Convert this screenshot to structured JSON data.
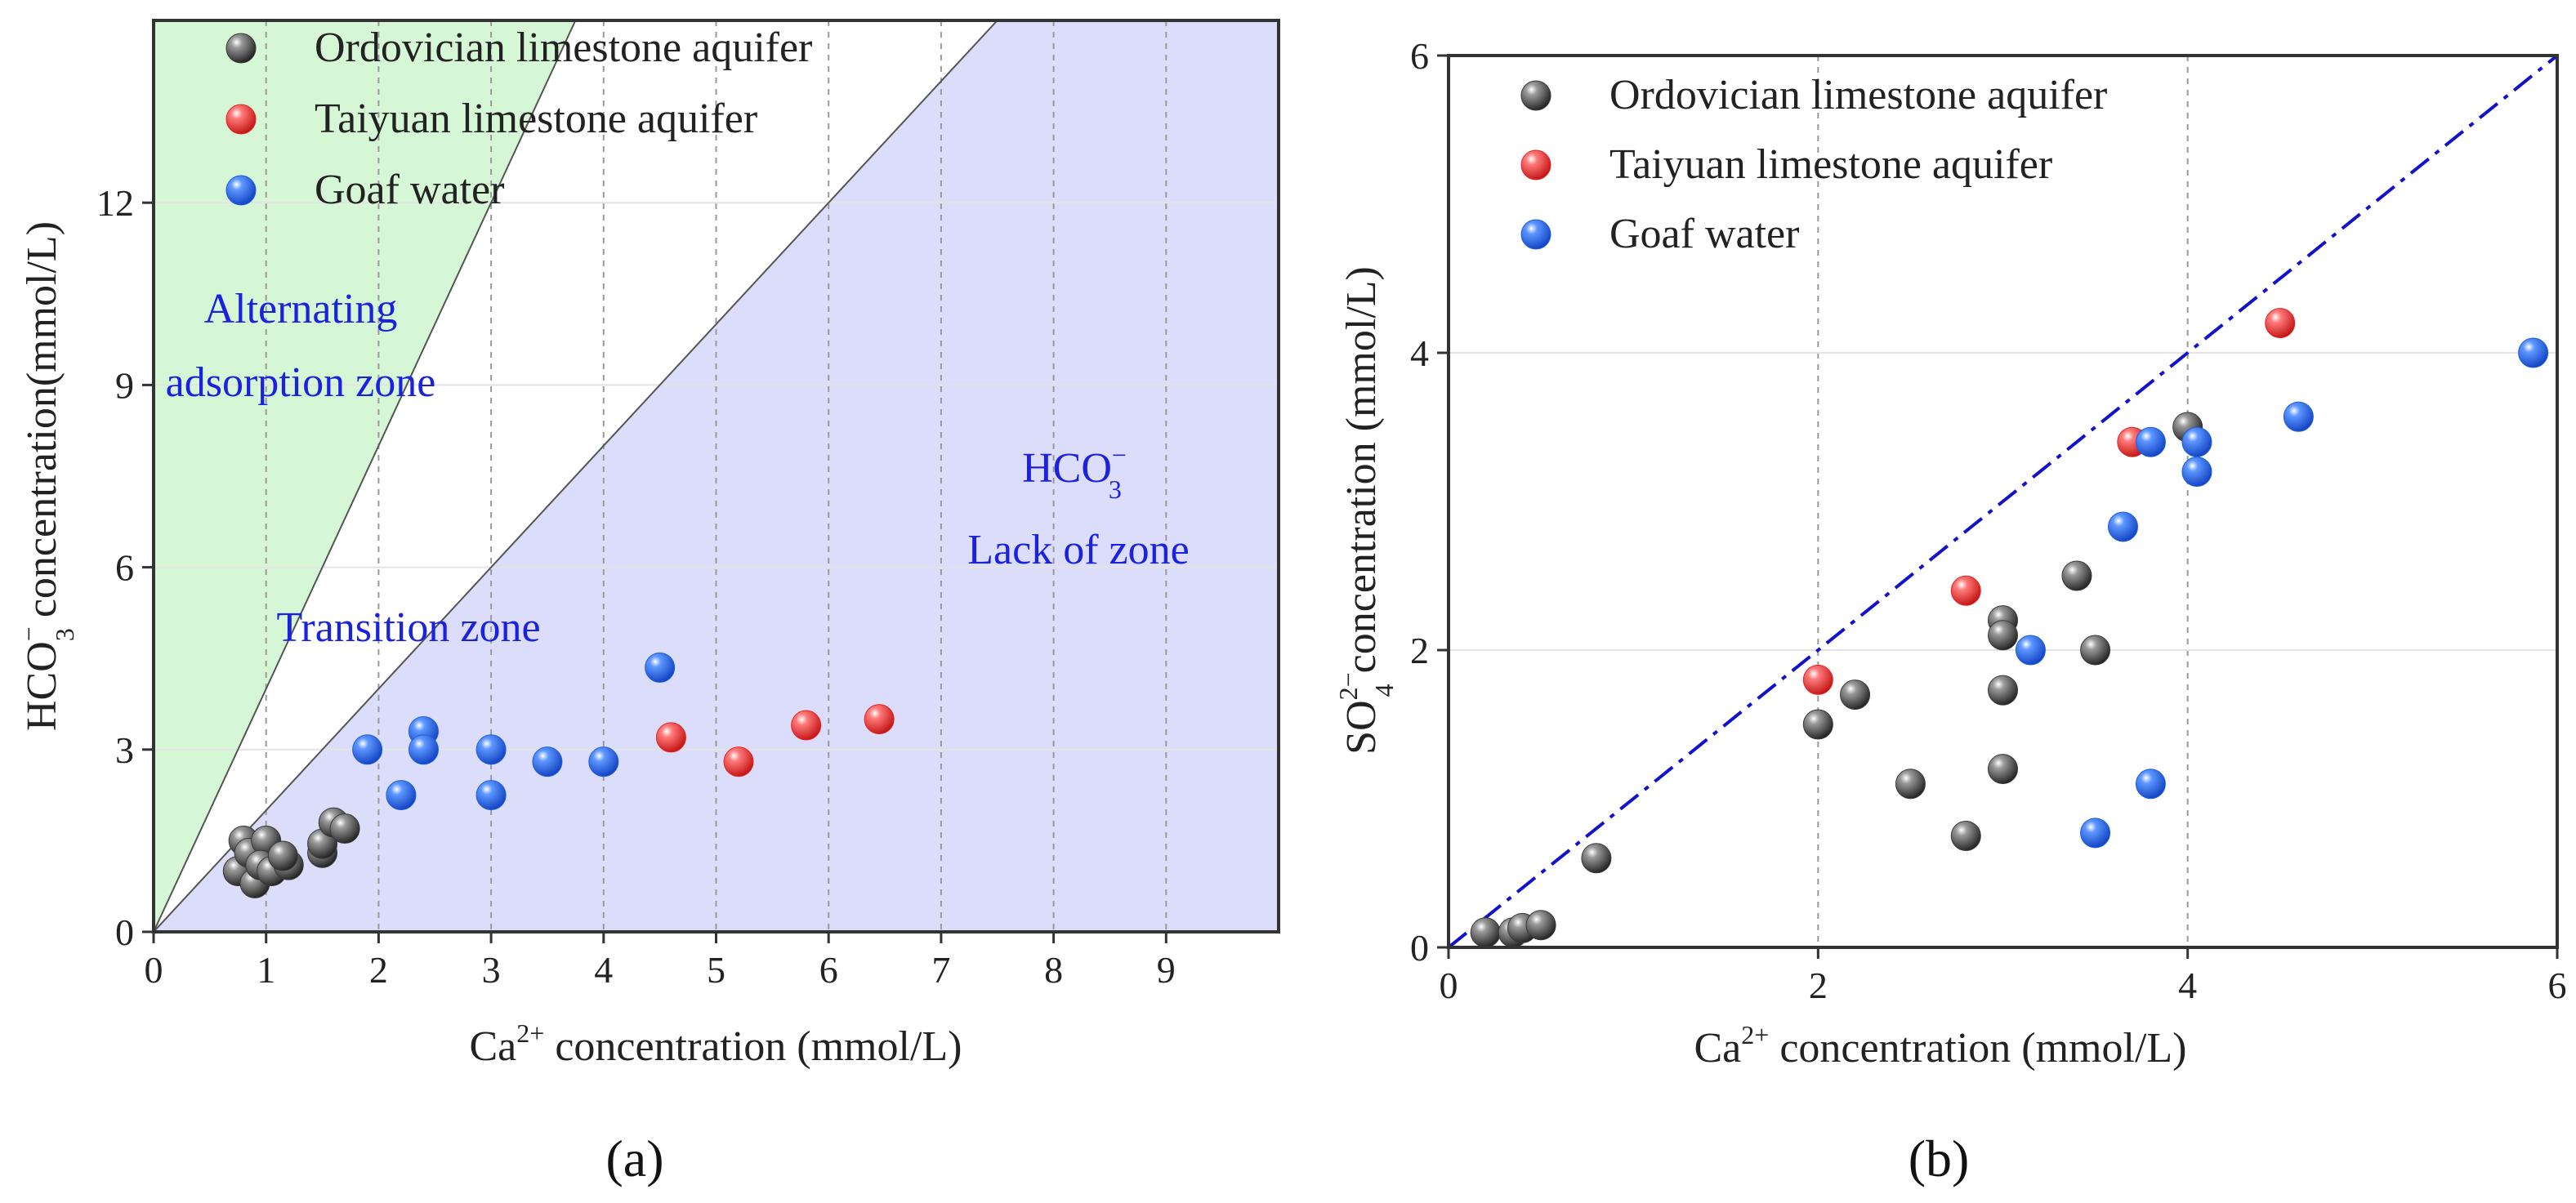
{
  "colors": {
    "ordovician": "#3a3a3a",
    "taiyuan": "#e62525",
    "goaf": "#1f5fe0",
    "green_zone": "#d6f7d6",
    "lavender_zone": "#dcdcfb",
    "zone_text": "#1a22e0",
    "diagonal": "#1212cc"
  },
  "chart_data": [
    {
      "id": "a",
      "type": "scatter",
      "caption": "(a)",
      "xlabel_prefix": "Ca",
      "xlabel_sup": "2+",
      "xlabel_suffix": " concentration (mmol/L)",
      "ylabel_prefix": "HCO",
      "ylabel_sub": "3",
      "ylabel_sup": "−",
      "ylabel_suffix": " concentration(mmol/L)",
      "xlim": [
        0,
        10
      ],
      "ylim": [
        0,
        15
      ],
      "xticks": [
        "0",
        "1",
        "2",
        "3",
        "4",
        "5",
        "6",
        "7",
        "8",
        "9"
      ],
      "xtick_values": [
        0,
        1,
        2,
        3,
        4,
        5,
        6,
        7,
        8,
        9
      ],
      "yticks": [
        "0",
        "3",
        "6",
        "9",
        "12"
      ],
      "ytick_values": [
        0,
        3,
        6,
        9,
        12
      ],
      "boundary_lines": [
        {
          "name": "upper-boundary",
          "slope": 4
        },
        {
          "name": "lower-boundary",
          "slope": 2
        }
      ],
      "zones": {
        "alternating_line1": "Alternating",
        "alternating_line2": "adsorption zone",
        "transition": "Transition zone",
        "lack_top_prefix": "HCO",
        "lack_top_sub": "3",
        "lack_top_sup": "−",
        "lack_bottom": "Lack of zone"
      },
      "legend": [
        {
          "label": "Ordovician limestone aquifer",
          "color_key": "ordovician"
        },
        {
          "label": "Taiyuan limestone aquifer",
          "color_key": "taiyuan"
        },
        {
          "label": "Goaf water",
          "color_key": "goaf"
        }
      ],
      "series": [
        {
          "name": "Ordovician limestone aquifer",
          "color_key": "ordovician",
          "points": [
            [
              0.8,
              1.5
            ],
            [
              0.75,
              1.0
            ],
            [
              0.85,
              1.3
            ],
            [
              0.9,
              0.8
            ],
            [
              1.0,
              1.5
            ],
            [
              0.95,
              1.1
            ],
            [
              1.05,
              1.0
            ],
            [
              1.2,
              1.1
            ],
            [
              1.15,
              1.25
            ],
            [
              1.5,
              1.3
            ],
            [
              1.5,
              1.45
            ],
            [
              1.6,
              1.8
            ],
            [
              1.7,
              1.7
            ]
          ]
        },
        {
          "name": "Taiyuan limestone aquifer",
          "color_key": "taiyuan",
          "points": [
            [
              4.6,
              3.2
            ],
            [
              5.2,
              2.8
            ],
            [
              5.8,
              3.4
            ],
            [
              6.45,
              3.5
            ]
          ]
        },
        {
          "name": "Goaf water",
          "color_key": "goaf",
          "points": [
            [
              1.9,
              3.0
            ],
            [
              2.2,
              2.25
            ],
            [
              2.4,
              3.3
            ],
            [
              2.4,
              3.0
            ],
            [
              3.0,
              3.0
            ],
            [
              3.0,
              2.25
            ],
            [
              3.5,
              2.8
            ],
            [
              4.0,
              2.8
            ],
            [
              4.5,
              4.35
            ]
          ]
        }
      ]
    },
    {
      "id": "b",
      "type": "scatter",
      "caption": "(b)",
      "xlabel_prefix": "Ca",
      "xlabel_sup": "2+",
      "xlabel_suffix": " concentration (mmol/L)",
      "ylabel_prefix": "SO",
      "ylabel_sub": "4",
      "ylabel_sup": "2−",
      "ylabel_suffix": " concentration (mmol/L)",
      "xlim": [
        0,
        6
      ],
      "ylim": [
        0,
        6
      ],
      "xticks": [
        "0",
        "2",
        "4",
        "6"
      ],
      "xtick_values": [
        0,
        2,
        4,
        6
      ],
      "yticks": [
        "0",
        "2",
        "4",
        "6"
      ],
      "ytick_values": [
        0,
        2,
        4,
        6
      ],
      "reference_line": "y = x",
      "legend": [
        {
          "label": "Ordovician limestone aquifer",
          "color_key": "ordovician"
        },
        {
          "label": "Taiyuan limestone aquifer",
          "color_key": "taiyuan"
        },
        {
          "label": "Goaf water",
          "color_key": "goaf"
        }
      ],
      "series": [
        {
          "name": "Ordovician limestone aquifer",
          "color_key": "ordovician",
          "points": [
            [
              0.2,
              0.1
            ],
            [
              0.35,
              0.1
            ],
            [
              0.4,
              0.13
            ],
            [
              0.5,
              0.15
            ],
            [
              0.8,
              0.6
            ],
            [
              2.0,
              1.5
            ],
            [
              2.2,
              1.7
            ],
            [
              2.5,
              1.1
            ],
            [
              2.8,
              0.75
            ],
            [
              3.0,
              2.2
            ],
            [
              3.0,
              2.1
            ],
            [
              3.0,
              1.73
            ],
            [
              3.0,
              1.2
            ],
            [
              3.4,
              2.5
            ],
            [
              3.5,
              2.0
            ],
            [
              4.0,
              3.5
            ]
          ]
        },
        {
          "name": "Taiyuan limestone aquifer",
          "color_key": "taiyuan",
          "points": [
            [
              2.0,
              1.8
            ],
            [
              2.8,
              2.4
            ],
            [
              3.7,
              3.4
            ],
            [
              4.5,
              4.2
            ]
          ]
        },
        {
          "name": "Goaf water",
          "color_key": "goaf",
          "points": [
            [
              3.15,
              2.0
            ],
            [
              3.5,
              0.77
            ],
            [
              3.65,
              2.83
            ],
            [
              3.8,
              3.4
            ],
            [
              3.8,
              1.1
            ],
            [
              4.05,
              3.4
            ],
            [
              4.05,
              3.2
            ],
            [
              4.6,
              3.57
            ],
            [
              5.87,
              4.0
            ]
          ]
        }
      ]
    }
  ]
}
